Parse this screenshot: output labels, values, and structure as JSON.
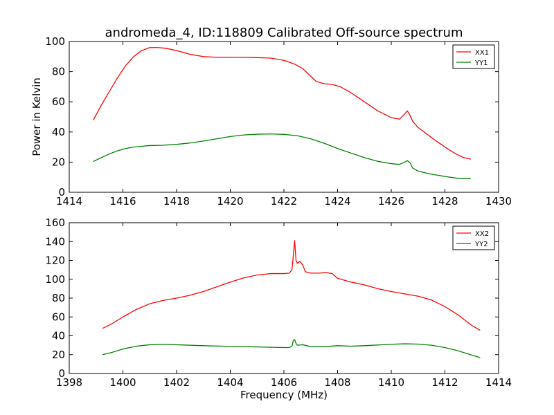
{
  "figure": {
    "title": "andromeda_4, ID:118809 Calibrated Off-source spectrum",
    "ylabel": "Power in Kelvin",
    "xlabel": "Frequency (MHz)"
  },
  "chart_data": [
    {
      "type": "line",
      "title": "andromeda_4, ID:118809 Calibrated Off-source spectrum",
      "xlabel": "",
      "ylabel": "Power in Kelvin",
      "xlim": [
        1414,
        1430
      ],
      "ylim": [
        0,
        100
      ],
      "xticks": [
        1414,
        1416,
        1418,
        1420,
        1422,
        1424,
        1426,
        1428,
        1430
      ],
      "yticks": [
        0,
        20,
        40,
        60,
        80,
        100
      ],
      "grid": false,
      "legend": "top-right",
      "series": [
        {
          "name": "XX1",
          "color": "#ff0000",
          "x": [
            1414.9,
            1415.2,
            1415.5,
            1415.8,
            1416.1,
            1416.4,
            1416.7,
            1417.0,
            1417.3,
            1417.6,
            1418.0,
            1418.5,
            1419.0,
            1419.5,
            1420.0,
            1420.5,
            1421.0,
            1421.5,
            1422.0,
            1422.4,
            1422.7,
            1423.0,
            1423.2,
            1423.5,
            1423.8,
            1424.1,
            1424.5,
            1425.0,
            1425.5,
            1426.0,
            1426.3,
            1426.45,
            1426.6,
            1426.7,
            1426.8,
            1427.0,
            1427.3,
            1427.6,
            1428.0,
            1428.4,
            1428.7,
            1428.95
          ],
          "values": [
            48,
            58,
            67,
            76,
            84,
            90,
            94,
            96,
            96,
            95.5,
            94,
            91.5,
            90,
            89.5,
            89.5,
            89.5,
            89.3,
            89,
            87.5,
            85,
            82,
            77,
            73.5,
            72,
            71.5,
            70,
            66,
            60,
            54,
            49.5,
            48.5,
            51,
            54,
            51,
            47,
            43,
            39,
            35,
            30,
            25.5,
            23,
            22
          ]
        },
        {
          "name": "YY1",
          "color": "#008000",
          "x": [
            1414.9,
            1415.2,
            1415.5,
            1415.8,
            1416.1,
            1416.4,
            1416.7,
            1417.0,
            1417.5,
            1418.0,
            1418.5,
            1419.0,
            1419.5,
            1420.0,
            1420.5,
            1421.0,
            1421.5,
            1422.0,
            1422.5,
            1423.0,
            1423.5,
            1424.0,
            1424.5,
            1425.0,
            1425.5,
            1426.0,
            1426.3,
            1426.5,
            1426.6,
            1426.7,
            1426.8,
            1427.0,
            1427.5,
            1428.0,
            1428.5,
            1428.95
          ],
          "values": [
            20.5,
            23,
            25.5,
            27.5,
            29,
            30,
            30.5,
            31,
            31.2,
            31.8,
            32.7,
            34,
            35.5,
            37,
            38,
            38.5,
            38.7,
            38.4,
            37.5,
            35.5,
            32.5,
            29,
            26,
            23,
            20.5,
            19,
            18.5,
            20,
            21,
            19.5,
            16,
            14,
            12,
            10.5,
            9.2,
            9
          ]
        }
      ]
    },
    {
      "type": "line",
      "title": "",
      "xlabel": "Frequency (MHz)",
      "ylabel": "",
      "xlim": [
        1398,
        1414
      ],
      "ylim": [
        0,
        160
      ],
      "xticks": [
        1398,
        1400,
        1402,
        1404,
        1406,
        1408,
        1410,
        1412,
        1414
      ],
      "yticks": [
        0,
        20,
        40,
        60,
        80,
        100,
        120,
        140,
        160
      ],
      "grid": false,
      "legend": "top-right",
      "series": [
        {
          "name": "XX2",
          "color": "#ff0000",
          "x": [
            1399.25,
            1399.6,
            1400.0,
            1400.5,
            1401.0,
            1401.5,
            1402.0,
            1402.5,
            1403.0,
            1403.5,
            1404.0,
            1404.5,
            1405.0,
            1405.5,
            1406.0,
            1406.2,
            1406.3,
            1406.35,
            1406.4,
            1406.45,
            1406.5,
            1406.6,
            1406.7,
            1406.8,
            1407.0,
            1407.3,
            1407.6,
            1407.8,
            1408.0,
            1408.5,
            1409.0,
            1409.5,
            1410.0,
            1410.5,
            1411.0,
            1411.5,
            1412.0,
            1412.5,
            1413.0,
            1413.3
          ],
          "values": [
            48,
            53,
            60,
            68,
            74,
            77.5,
            80,
            83,
            87,
            92,
            97,
            101.5,
            104.5,
            106,
            106,
            106.5,
            110,
            125,
            141,
            120,
            117,
            119,
            115,
            108,
            106.5,
            106.5,
            107,
            106,
            101,
            97,
            94,
            90,
            87,
            84.5,
            82,
            78,
            71,
            62,
            51,
            46
          ]
        },
        {
          "name": "YY2",
          "color": "#008000",
          "x": [
            1399.25,
            1399.6,
            1400.0,
            1400.5,
            1401.0,
            1401.5,
            1402.0,
            1403.0,
            1404.0,
            1405.0,
            1406.0,
            1406.2,
            1406.3,
            1406.35,
            1406.4,
            1406.45,
            1406.5,
            1406.7,
            1407.0,
            1407.5,
            1408.0,
            1408.5,
            1409.0,
            1410.0,
            1410.5,
            1411.0,
            1411.5,
            1412.0,
            1412.5,
            1413.0,
            1413.3
          ],
          "values": [
            20,
            22.5,
            26,
            29,
            30.5,
            31,
            30.5,
            29.5,
            28.8,
            28.2,
            27.5,
            27.5,
            29,
            35,
            36,
            32,
            30,
            30.5,
            28.5,
            28.5,
            29.5,
            29,
            29.5,
            31,
            31.5,
            31.2,
            30,
            27.5,
            24,
            19.5,
            17
          ]
        }
      ]
    }
  ]
}
